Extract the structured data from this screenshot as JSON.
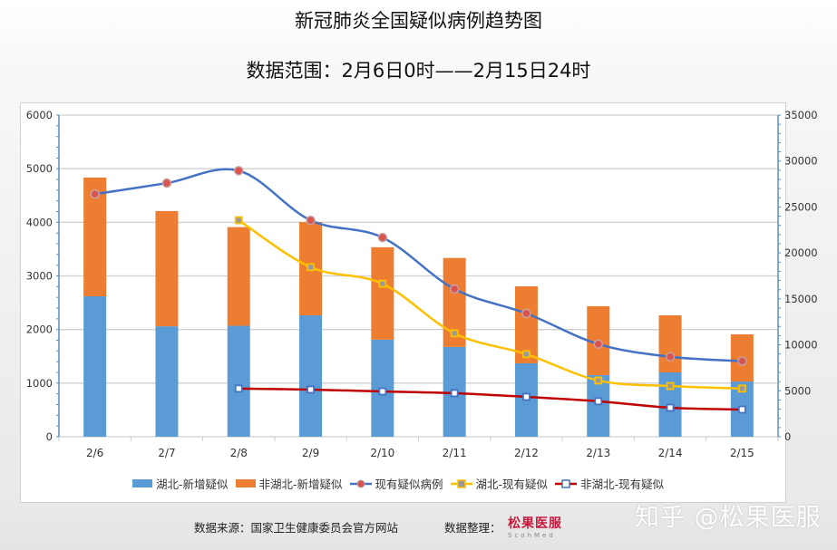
{
  "title": "新冠肺炎全国疑似病例趋势图",
  "subtitle": "数据范围：2月6日0时——2月15日24时",
  "chart_data": {
    "type": "bar+line",
    "categories": [
      "2/6",
      "2/7",
      "2/8",
      "2/9",
      "2/10",
      "2/11",
      "2/12",
      "2/13",
      "2/14",
      "2/15"
    ],
    "left_axis": {
      "ylim": [
        0,
        6000
      ],
      "ticks": [
        0,
        1000,
        2000,
        3000,
        4000,
        5000,
        6000
      ]
    },
    "right_axis": {
      "ylim": [
        0,
        35000
      ],
      "ticks": [
        0,
        5000,
        10000,
        15000,
        20000,
        25000,
        30000,
        35000
      ]
    },
    "grid": true,
    "legend_position": "bottom",
    "series": [
      {
        "name": "湖北-新增疑似",
        "type": "stacked-bar",
        "axis": "left",
        "color": "#5b9bd5",
        "values": [
          2620,
          2060,
          2070,
          2265,
          1810,
          1675,
          1370,
          1150,
          1200,
          1030
        ]
      },
      {
        "name": "非湖北-新增疑似",
        "type": "stacked-bar",
        "axis": "left",
        "color": "#ed7d31",
        "values": [
          2215,
          2150,
          1840,
          1740,
          1725,
          1660,
          1435,
          1285,
          1065,
          880
        ]
      },
      {
        "name": "现有疑似病例",
        "type": "line",
        "axis": "right",
        "color": "#4472c4",
        "marker_color": "#d9534f",
        "values": [
          26400,
          27600,
          28950,
          23550,
          21680,
          16070,
          13420,
          10080,
          8700,
          8230
        ]
      },
      {
        "name": "湖北-现有疑似",
        "type": "line",
        "axis": "right",
        "color": "#ffc000",
        "values": [
          null,
          null,
          23560,
          18450,
          16650,
          11250,
          8980,
          6120,
          5520,
          5240
        ]
      },
      {
        "name": "非湖北-现有疑似",
        "type": "line",
        "axis": "right",
        "color": "#c00000",
        "values": [
          null,
          null,
          5240,
          5130,
          4930,
          4740,
          4340,
          3860,
          3160,
          2960
        ]
      }
    ]
  },
  "footer": {
    "source": "数据来源：国家卫生健康委员会官方网站",
    "organizer_label": "数据整理：",
    "logo_text": "松果医服",
    "logo_sub": "ScohMed"
  },
  "watermark": "知乎 @松果医服"
}
